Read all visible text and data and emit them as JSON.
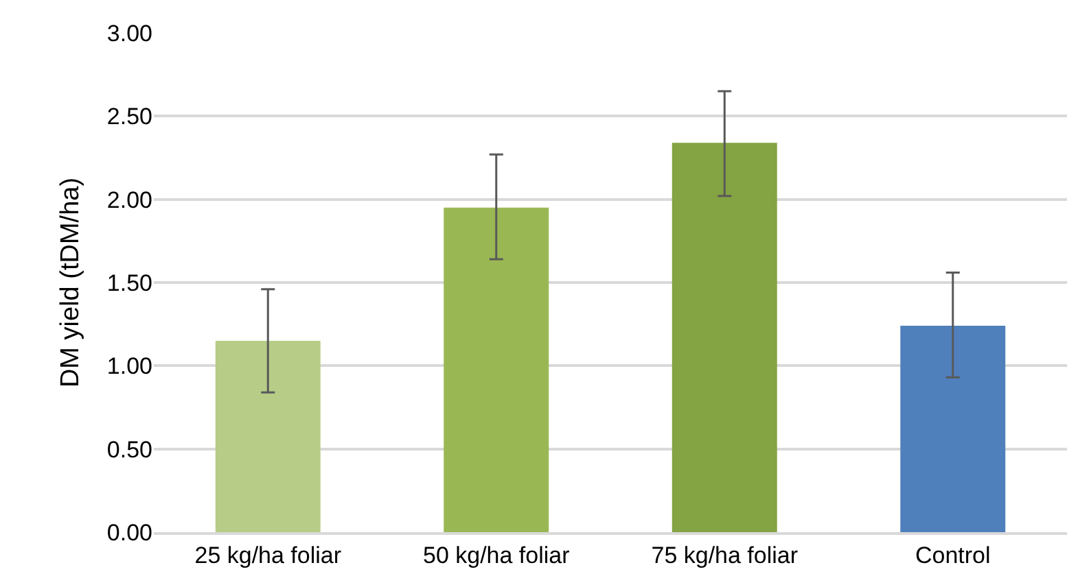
{
  "chart_data": {
    "type": "bar",
    "ylabel": "DM yield (tDM/ha)",
    "categories": [
      "25 kg/ha foliar",
      "50 kg/ha foliar",
      "75 kg/ha foliar",
      "Control"
    ],
    "values": [
      1.15,
      1.95,
      2.34,
      1.24
    ],
    "colors": [
      "#b6cc87",
      "#99b853",
      "#84a343",
      "#4f80bc"
    ],
    "errors": [
      [
        0.84,
        1.46
      ],
      [
        1.64,
        2.27
      ],
      [
        2.02,
        2.65
      ],
      [
        0.93,
        1.56
      ]
    ],
    "ylim": [
      0,
      3
    ],
    "yticks": [
      {
        "value": 0,
        "label": "0.00"
      },
      {
        "value": 0.5,
        "label": "0.50"
      },
      {
        "value": 1,
        "label": "1.00"
      },
      {
        "value": 1.5,
        "label": "1.50"
      },
      {
        "value": 2,
        "label": "2.00"
      },
      {
        "value": 2.5,
        "label": "2.50"
      },
      {
        "value": 3,
        "label": "3.00"
      }
    ],
    "grid": "y"
  }
}
